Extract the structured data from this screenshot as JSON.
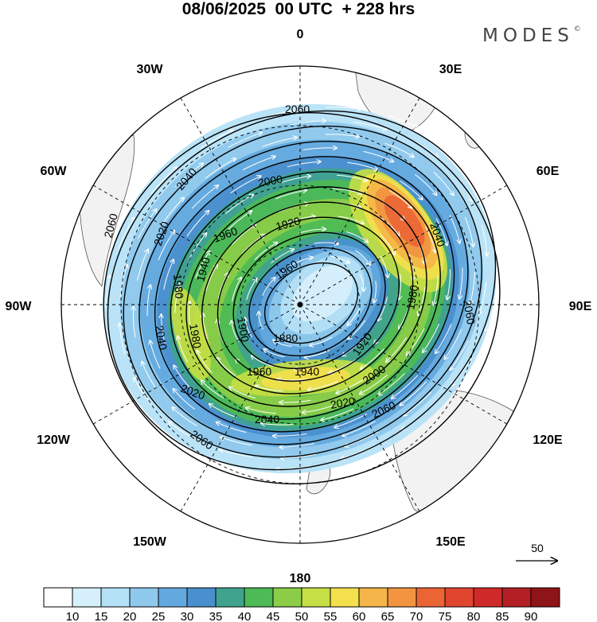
{
  "header": {
    "title": "08/06/2025  00 UTC  + 228 hrs",
    "brand": "MODES",
    "brand_mark": "©"
  },
  "map": {
    "projection": "polar-stereographic-south",
    "longitude_labels": {
      "lon_0": "0",
      "lon_30e": "30E",
      "lon_60e": "60E",
      "lon_90e": "90E",
      "lon_120e": "120E",
      "lon_150e": "150E",
      "lon_180": "180",
      "lon_150w": "150W",
      "lon_120w": "120W",
      "lon_90w": "90W",
      "lon_60w": "60W",
      "lon_30w": "30W"
    },
    "land_color": "#f2f2f2",
    "grid_style": "dashed"
  },
  "contours": {
    "units_shown": "geopotential height",
    "labels": [
      {
        "id": "c2060a",
        "text": "2060"
      },
      {
        "id": "c2060b",
        "text": "2060"
      },
      {
        "id": "c2060c",
        "text": "2060"
      },
      {
        "id": "c2060d",
        "text": "2060"
      },
      {
        "id": "c2060e",
        "text": "2060"
      },
      {
        "id": "c2040a",
        "text": "2040"
      },
      {
        "id": "c2040b",
        "text": "2040"
      },
      {
        "id": "c2040c",
        "text": "2040"
      },
      {
        "id": "c2040d",
        "text": "2040"
      },
      {
        "id": "c2020a",
        "text": "2020"
      },
      {
        "id": "c2020b",
        "text": "2020"
      },
      {
        "id": "c2020c",
        "text": "2020"
      },
      {
        "id": "c2000a",
        "text": "2000"
      },
      {
        "id": "c2000b",
        "text": "2000"
      },
      {
        "id": "c1980a",
        "text": "1980"
      },
      {
        "id": "c1980b",
        "text": "1980"
      },
      {
        "id": "c1980c",
        "text": "1980"
      },
      {
        "id": "c1960a",
        "text": "1960"
      },
      {
        "id": "c1960b",
        "text": "1960"
      },
      {
        "id": "c1960c",
        "text": "1960"
      },
      {
        "id": "c1940a",
        "text": "1940"
      },
      {
        "id": "c1940b",
        "text": "1940"
      },
      {
        "id": "c1920a",
        "text": "1920"
      },
      {
        "id": "c1920b",
        "text": "1920"
      },
      {
        "id": "c1900a",
        "text": "1900"
      },
      {
        "id": "c1880a",
        "text": "1880"
      },
      {
        "id": "c1860a",
        "text": "1860"
      }
    ]
  },
  "wind_speed_shading": {
    "colorbar_ticks": [
      "10",
      "15",
      "20",
      "25",
      "30",
      "35",
      "40",
      "45",
      "50",
      "55",
      "60",
      "65",
      "70",
      "75",
      "80",
      "85",
      "90"
    ],
    "colors": [
      "#ffffff",
      "#d6f0fb",
      "#b5e1f6",
      "#8ec8ec",
      "#63a9df",
      "#4a8fce",
      "#3fa38e",
      "#4cba55",
      "#8ccd48",
      "#c6df45",
      "#f4df4c",
      "#f5b548",
      "#f29440",
      "#eb6534",
      "#e04530",
      "#cf2a2a",
      "#b31f24",
      "#8e1418"
    ]
  },
  "reference_vector": {
    "label": "50"
  }
}
